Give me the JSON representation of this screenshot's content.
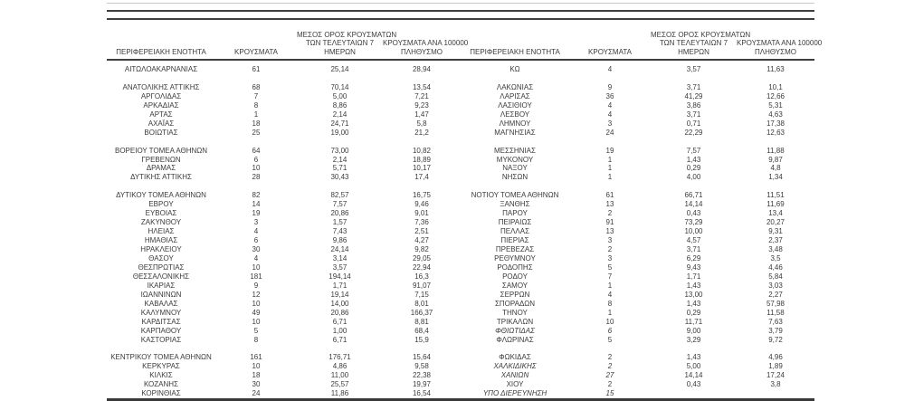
{
  "page": {
    "background": "#ffffff"
  },
  "table": {
    "colors": {
      "text": "#3b3b3b",
      "rule_dark": "#3f3e3e",
      "rule_light": "#c9c9c9"
    },
    "headers": {
      "region": "ΠΕΡΙΦΕΡΕΙΑΚΗ ΕΝΟΤΗΤΑ",
      "cases": "ΚΡΟΥΣΜΑΤΑ",
      "avg7_lines": [
        "ΜΕΣΟΣ ΟΡΟΣ ΚΡΟΥΣΜΑΤΩΝ",
        "ΤΩΝ ΤΕΛΕΥΤΑΙΩΝ 7",
        "ΗΜΕΡΩΝ"
      ],
      "per100k_lines": [
        "ΚΡΟΥΣΜΑΤΑ ΑΝΑ 100000",
        "ΠΛΗΘΥΣΜΟ"
      ]
    },
    "rows": [
      {
        "left": [
          "ΑΙΤΩΛΟΑΚΑΡΝΑΝΙΑΣ",
          "61",
          "25,14",
          "28,94"
        ],
        "right": [
          "ΚΩ",
          "4",
          "3,57",
          "11,63"
        ]
      },
      {
        "left": null,
        "right": null
      },
      {
        "left": [
          "ΑΝΑΤΟΛΙΚΗΣ ΑΤΤΙΚΗΣ",
          "68",
          "70,14",
          "13,54"
        ],
        "right": [
          "ΛΑΚΩΝΙΑΣ",
          "9",
          "3,71",
          "10,1"
        ]
      },
      {
        "left": [
          "ΑΡΓΟΛΙΔΑΣ",
          "7",
          "5,00",
          "7,21"
        ],
        "right": [
          "ΛΑΡΙΣΑΣ",
          "36",
          "41,29",
          "12,66"
        ]
      },
      {
        "left": [
          "ΑΡΚΑΔΙΑΣ",
          "8",
          "8,86",
          "9,23"
        ],
        "right": [
          "ΛΑΣΙΘΙΟΥ",
          "4",
          "3,86",
          "5,31"
        ]
      },
      {
        "left": [
          "ΑΡΤΑΣ",
          "1",
          "2,14",
          "1,47"
        ],
        "right": [
          "ΛΕΣΒΟΥ",
          "4",
          "3,71",
          "4,63"
        ]
      },
      {
        "left": [
          "ΑΧΑΪΑΣ",
          "18",
          "24,71",
          "5,8"
        ],
        "right": [
          "ΛΗΜΝΟΥ",
          "3",
          "0,71",
          "17,38"
        ]
      },
      {
        "left": [
          "ΒΟΙΩΤΙΑΣ",
          "25",
          "19,00",
          "21,2"
        ],
        "right": [
          "ΜΑΓΝΗΣΙΑΣ",
          "24",
          "22,29",
          "12,63"
        ]
      },
      {
        "left": null,
        "right": null
      },
      {
        "left": [
          "ΒΟΡΕΙΟΥ ΤΟΜΕΑ ΑΘΗΝΩΝ",
          "64",
          "73,00",
          "10,82"
        ],
        "right": [
          "ΜΕΣΣΗΝΙΑΣ",
          "19",
          "7,57",
          "11,88"
        ]
      },
      {
        "left": [
          "ΓΡΕΒΕΝΩΝ",
          "6",
          "2,14",
          "18,89"
        ],
        "right": [
          "ΜΥΚΟΝΟΥ",
          "1",
          "1,43",
          "9,87"
        ]
      },
      {
        "left": [
          "ΔΡΑΜΑΣ",
          "10",
          "5,71",
          "10,17"
        ],
        "right": [
          "ΝΑΞΟΥ",
          "1",
          "0,29",
          "4,8"
        ]
      },
      {
        "left": [
          "ΔΥΤΙΚΗΣ ΑΤΤΙΚΗΣ",
          "28",
          "30,43",
          "17,4"
        ],
        "right": [
          "ΝΗΣΩΝ",
          "1",
          "4,00",
          "1,34"
        ]
      },
      {
        "left": null,
        "right": null
      },
      {
        "left": [
          "ΔΥΤΙΚΟΥ ΤΟΜΕΑ ΑΘΗΝΩΝ",
          "82",
          "82,57",
          "16,75"
        ],
        "right": [
          "ΝΟΤΙΟΥ ΤΟΜΕΑ ΑΘΗΝΩΝ",
          "61",
          "66,71",
          "11,51"
        ]
      },
      {
        "left": [
          "ΕΒΡΟΥ",
          "14",
          "7,57",
          "9,46"
        ],
        "right": [
          "ΞΑΝΘΗΣ",
          "13",
          "14,14",
          "11,69"
        ]
      },
      {
        "left": [
          "ΕΥΒΟΙΑΣ",
          "19",
          "20,86",
          "9,01"
        ],
        "right": [
          "ΠΑΡΟΥ",
          "2",
          "0,43",
          "13,4"
        ]
      },
      {
        "left": [
          "ΖΑΚΥΝΘΟΥ",
          "3",
          "1,57",
          "7,36"
        ],
        "right": [
          "ΠΕΙΡΑΙΩΣ",
          "91",
          "73,29",
          "20,27"
        ]
      },
      {
        "left": [
          "ΗΛΕΙΑΣ",
          "4",
          "7,43",
          "2,51"
        ],
        "right": [
          "ΠΕΛΛΑΣ",
          "13",
          "10,00",
          "9,31"
        ]
      },
      {
        "left": [
          "ΗΜΑΘΙΑΣ",
          "6",
          "9,86",
          "4,27"
        ],
        "right": [
          "ΠΙΕΡΙΑΣ",
          "3",
          "4,57",
          "2,37"
        ]
      },
      {
        "left": [
          "ΗΡΑΚΛΕΙΟΥ",
          "30",
          "24,14",
          "9,82"
        ],
        "right": [
          "ΠΡΕΒΕΖΑΣ",
          "2",
          "3,71",
          "3,48"
        ]
      },
      {
        "left": [
          "ΘΑΣΟΥ",
          "4",
          "3,14",
          "29,05"
        ],
        "right": [
          "ΡΕΘΥΜΝΟΥ",
          "3",
          "6,29",
          "3,5"
        ]
      },
      {
        "left": [
          "ΘΕΣΠΡΩΤΙΑΣ",
          "10",
          "3,57",
          "22,94"
        ],
        "right": [
          "ΡΟΔΟΠΗΣ",
          "5",
          "9,43",
          "4,46"
        ]
      },
      {
        "left": [
          "ΘΕΣΣΑΛΟΝΙΚΗΣ",
          "181",
          "194,14",
          "16,3"
        ],
        "right": [
          "ΡΟΔΟΥ",
          "7",
          "1,71",
          "5,84"
        ]
      },
      {
        "left": [
          "ΙΚΑΡΙΑΣ",
          "9",
          "1,71",
          "91,07"
        ],
        "right": [
          "ΣΑΜΟΥ",
          "1",
          "1,43",
          "3,03"
        ]
      },
      {
        "left": [
          "ΙΩΑΝΝΙΝΩΝ",
          "12",
          "19,14",
          "7,15"
        ],
        "right": [
          "ΣΕΡΡΩΝ",
          "4",
          "13,00",
          "2,27"
        ]
      },
      {
        "left": [
          "ΚΑΒΑΛΑΣ",
          "10",
          "14,00",
          "8,01"
        ],
        "right": [
          "ΣΠΟΡΑΔΩΝ",
          "8",
          "1,43",
          "57,98"
        ]
      },
      {
        "left": [
          "ΚΑΛΥΜΝΟΥ",
          "49",
          "20,86",
          "166,37"
        ],
        "right": [
          "ΤΗΝΟΥ",
          "1",
          "0,29",
          "11,58"
        ]
      },
      {
        "left": [
          "ΚΑΡΔΙΤΣΑΣ",
          "10",
          "6,71",
          "8,81"
        ],
        "right": [
          "ΤΡΙΚΑΛΩΝ",
          "10",
          "11,71",
          "7,63"
        ]
      },
      {
        "left": [
          "ΚΑΡΠΑΘΟΥ",
          "5",
          "1,00",
          "68,4"
        ],
        "right": [
          "ΦΘΙΩΤΙΔΑΣ",
          "6",
          "9,00",
          "3,79"
        ],
        "right_italic": true
      },
      {
        "left": [
          "ΚΑΣΤΟΡΙΑΣ",
          "8",
          "6,71",
          "15,9"
        ],
        "right": [
          "ΦΛΩΡΙΝΑΣ",
          "5",
          "3,29",
          "9,72"
        ]
      },
      {
        "left": null,
        "right": null
      },
      {
        "left": [
          "ΚΕΝΤΡΙΚΟΥ ΤΟΜΕΑ ΑΘΗΝΩΝ",
          "161",
          "176,71",
          "15,64"
        ],
        "right": [
          "ΦΩΚΙΔΑΣ",
          "2",
          "1,43",
          "4,96"
        ]
      },
      {
        "left": [
          "ΚΕΡΚΥΡΑΣ",
          "10",
          "4,86",
          "9,58"
        ],
        "right": [
          "ΧΑΛΚΙΔΙΚΗΣ",
          "2",
          "5,00",
          "1,89"
        ],
        "right_italic": true
      },
      {
        "left": [
          "ΚΙΛΚΙΣ",
          "18",
          "11,00",
          "22,38"
        ],
        "right": [
          "ΧΑΝΙΩΝ",
          "27",
          "14,14",
          "17,24"
        ],
        "right_italic": true
      },
      {
        "left": [
          "ΚΟΖΑΝΗΣ",
          "30",
          "25,57",
          "19,97"
        ],
        "right": [
          "ΧΙΟΥ",
          "2",
          "0,43",
          "3,8"
        ]
      },
      {
        "left": [
          "ΚΟΡΙΝΘΙΑΣ",
          "24",
          "11,86",
          "16,54"
        ],
        "right": [
          "ΥΠΟ ΔΙΕΡΕΥΝΗΣΗ",
          "15",
          "",
          ""
        ],
        "right_italic": true
      }
    ]
  }
}
